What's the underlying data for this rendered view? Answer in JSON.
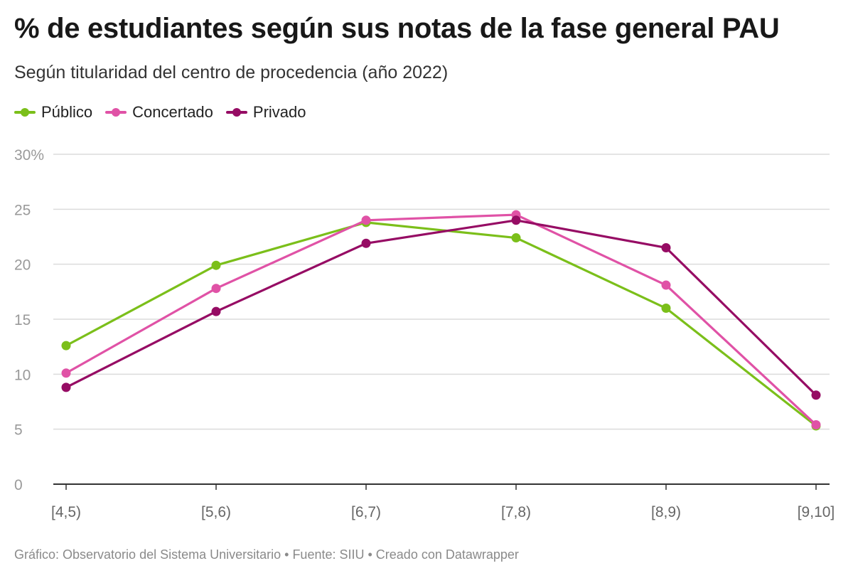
{
  "chart_data": {
    "type": "line",
    "title": "% de estudiantes según sus notas de la fase general PAU",
    "subtitle": "Según titularidad del centro de procedencia (año 2022)",
    "categories": [
      "[4,5)",
      "[5,6)",
      "[6,7)",
      "[7,8)",
      "[8,9)",
      "[9,10]"
    ],
    "series": [
      {
        "name": "Público",
        "color": "#7bbf1a",
        "values": [
          12.6,
          19.9,
          23.8,
          22.4,
          16.0,
          5.3
        ]
      },
      {
        "name": "Concertado",
        "color": "#e052a6",
        "values": [
          10.1,
          17.8,
          24.0,
          24.5,
          18.1,
          5.4
        ]
      },
      {
        "name": "Privado",
        "color": "#960c64",
        "values": [
          8.8,
          15.7,
          21.9,
          24.0,
          21.5,
          8.1
        ]
      }
    ],
    "y_ticks": [
      "0",
      "5",
      "10",
      "15",
      "20",
      "25",
      "30%"
    ],
    "ylim": [
      0,
      30
    ],
    "grid": true,
    "legend_position": "top-left",
    "footer": "Gráfico: Observatorio del Sistema Universitario • Fuente: SIIU • Creado con Datawrapper"
  }
}
